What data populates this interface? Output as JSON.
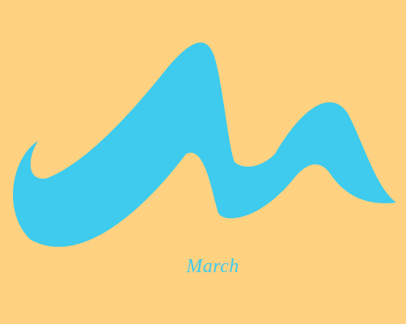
{
  "background_color": "#FFD281",
  "logo": {
    "icon": "stylized-m-wave-logo",
    "color": "#3ECBED"
  },
  "caption": {
    "text": "March",
    "color": "#3ECBED"
  }
}
